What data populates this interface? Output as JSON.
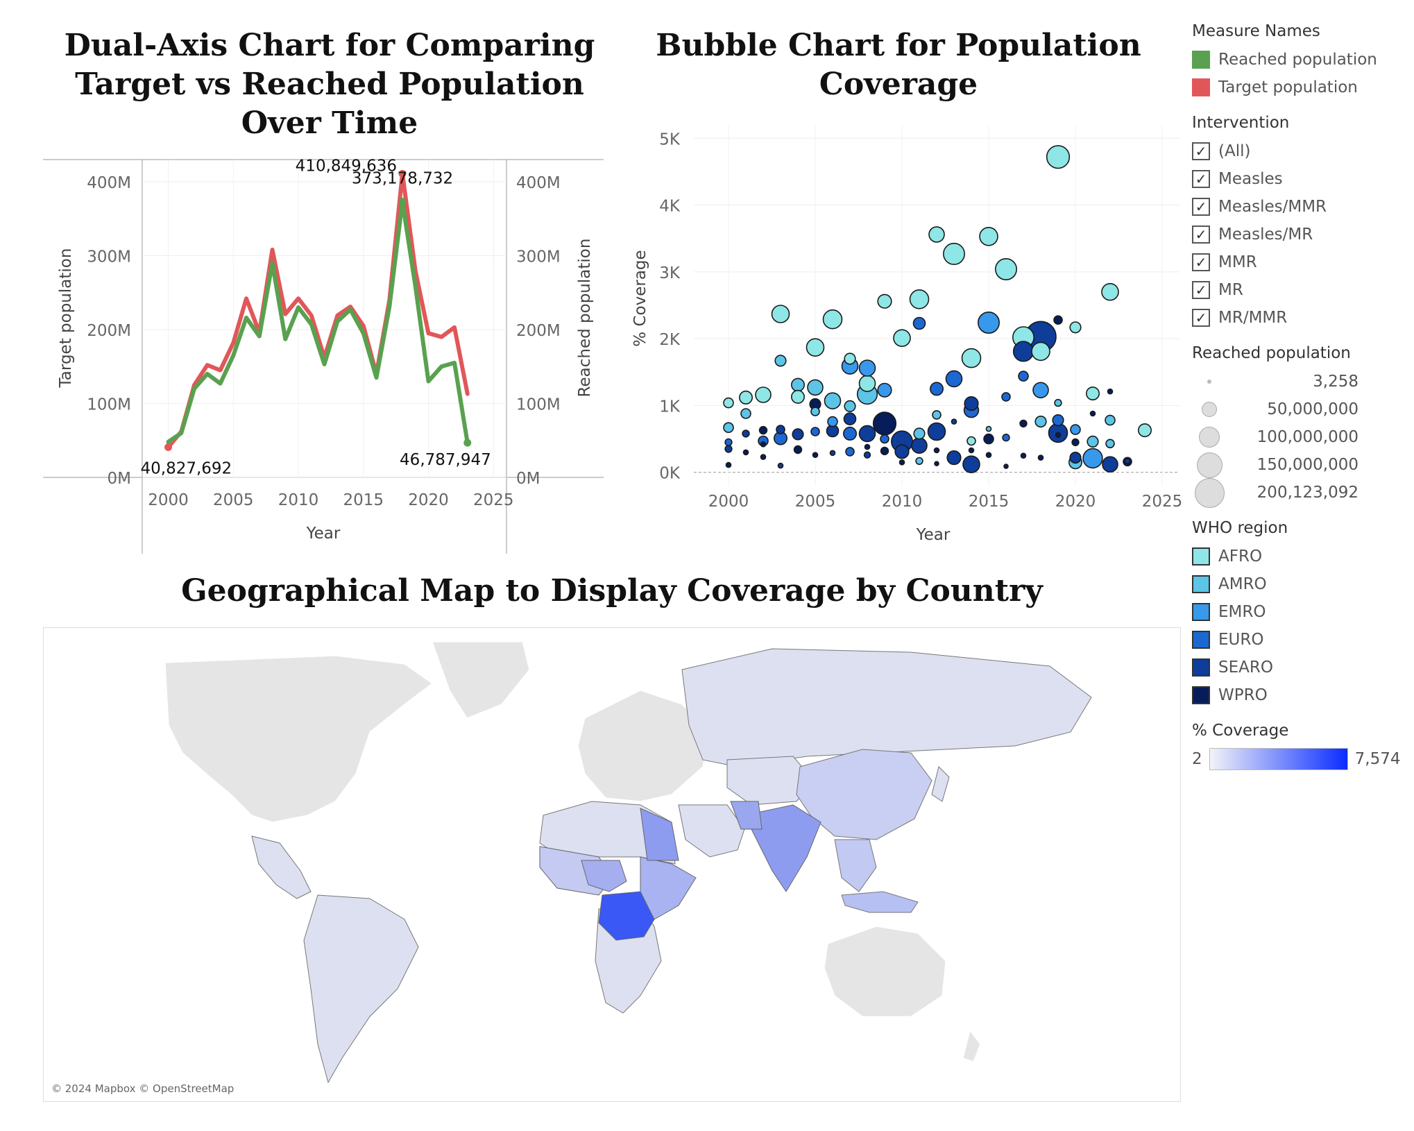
{
  "titles": {
    "dual": "Dual-Axis Chart for Comparing Target vs Reached Population Over Time",
    "bubble": "Bubble Chart for Population Coverage",
    "map": "Geographical Map to Display Coverage by Country"
  },
  "chart_data": [
    {
      "type": "line",
      "title": "Dual-Axis Chart for Comparing Target vs Reached Population Over Time",
      "xlabel": "Year",
      "ylabel_left": "Target population",
      "ylabel_right": "Reached population",
      "xlim": [
        1998,
        2026
      ],
      "ylim": [
        0,
        430000000
      ],
      "x_ticks": [
        2000,
        2005,
        2010,
        2015,
        2020,
        2025
      ],
      "y_ticks": [
        {
          "v": 0,
          "label": "0M"
        },
        {
          "v": 100000000,
          "label": "100M"
        },
        {
          "v": 200000000,
          "label": "200M"
        },
        {
          "v": 300000000,
          "label": "300M"
        },
        {
          "v": 400000000,
          "label": "400M"
        }
      ],
      "x": [
        2000,
        2001,
        2002,
        2003,
        2004,
        2005,
        2006,
        2007,
        2008,
        2009,
        2010,
        2011,
        2012,
        2013,
        2014,
        2015,
        2016,
        2017,
        2018,
        2019,
        2020,
        2021,
        2022,
        2023
      ],
      "series": [
        {
          "name": "Target population",
          "color": "#e15759",
          "values": [
            40827692,
            62000000,
            125000000,
            152000000,
            145000000,
            182000000,
            242000000,
            196000000,
            308000000,
            221000000,
            242000000,
            219000000,
            162000000,
            219000000,
            231000000,
            205000000,
            140000000,
            240000000,
            410849636,
            279000000,
            195000000,
            190000000,
            203000000,
            113000000
          ]
        },
        {
          "name": "Reached population",
          "color": "#59a14f",
          "values": [
            48000000,
            60000000,
            120000000,
            140000000,
            127000000,
            165000000,
            216000000,
            191000000,
            290000000,
            187000000,
            230000000,
            207000000,
            153000000,
            211000000,
            227000000,
            195000000,
            135000000,
            231000000,
            373178732,
            258000000,
            130000000,
            150000000,
            155000000,
            46787947
          ]
        }
      ],
      "annotations": [
        {
          "x": 2000,
          "text": "40,827,692",
          "series": "Target population"
        },
        {
          "x": 2018,
          "text": "410,849,636",
          "series": "Target population"
        },
        {
          "x": 2018,
          "text": "373,178,732",
          "series": "Reached population"
        },
        {
          "x": 2023,
          "text": "46,787,947",
          "series": "Reached population"
        }
      ]
    },
    {
      "type": "scatter",
      "title": "Bubble Chart for Population Coverage",
      "xlabel": "Year",
      "ylabel": "% Coverage",
      "xlim": [
        1998,
        2026
      ],
      "ylim": [
        -200,
        5200
      ],
      "x_ticks": [
        2000,
        2005,
        2010,
        2015,
        2020,
        2025
      ],
      "y_ticks": [
        {
          "v": 0,
          "label": "0K"
        },
        {
          "v": 1000,
          "label": "1K"
        },
        {
          "v": 2000,
          "label": "2K"
        },
        {
          "v": 3000,
          "label": "3K"
        },
        {
          "v": 4000,
          "label": "4K"
        },
        {
          "v": 5000,
          "label": "5K"
        }
      ],
      "size_field": "Reached population",
      "color_field": "WHO region",
      "points": [
        {
          "x": 2019,
          "y": 4720,
          "size": 110000000,
          "region": "AFRO"
        },
        {
          "x": 2012,
          "y": 3560,
          "size": 50000000,
          "region": "AFRO"
        },
        {
          "x": 2015,
          "y": 3530,
          "size": 70000000,
          "region": "AFRO"
        },
        {
          "x": 2013,
          "y": 3270,
          "size": 95000000,
          "region": "AFRO"
        },
        {
          "x": 2016,
          "y": 3040,
          "size": 95000000,
          "region": "AFRO"
        },
        {
          "x": 2022,
          "y": 2700,
          "size": 60000000,
          "region": "AFRO"
        },
        {
          "x": 2011,
          "y": 2590,
          "size": 75000000,
          "region": "AFRO"
        },
        {
          "x": 2009,
          "y": 2560,
          "size": 40000000,
          "region": "AFRO"
        },
        {
          "x": 2003,
          "y": 2370,
          "size": 65000000,
          "region": "AFRO"
        },
        {
          "x": 2006,
          "y": 2290,
          "size": 75000000,
          "region": "AFRO"
        },
        {
          "x": 2020,
          "y": 2170,
          "size": 25000000,
          "region": "AFRO"
        },
        {
          "x": 2010,
          "y": 2010,
          "size": 60000000,
          "region": "AFRO"
        },
        {
          "x": 2017,
          "y": 2020,
          "size": 95000000,
          "region": "AFRO"
        },
        {
          "x": 2005,
          "y": 1870,
          "size": 65000000,
          "region": "AFRO"
        },
        {
          "x": 2018,
          "y": 1810,
          "size": 70000000,
          "region": "AFRO"
        },
        {
          "x": 2014,
          "y": 1710,
          "size": 75000000,
          "region": "AFRO"
        },
        {
          "x": 2007,
          "y": 1700,
          "size": 25000000,
          "region": "AFRO"
        },
        {
          "x": 2003,
          "y": 1670,
          "size": 25000000,
          "region": "AMRO"
        },
        {
          "x": 2008,
          "y": 1330,
          "size": 55000000,
          "region": "AFRO"
        },
        {
          "x": 2004,
          "y": 1310,
          "size": 35000000,
          "region": "AMRO"
        },
        {
          "x": 2005,
          "y": 1270,
          "size": 50000000,
          "region": "AMRO"
        },
        {
          "x": 2002,
          "y": 1160,
          "size": 50000000,
          "region": "AFRO"
        },
        {
          "x": 2001,
          "y": 1120,
          "size": 35000000,
          "region": "AFRO"
        },
        {
          "x": 2004,
          "y": 1130,
          "size": 35000000,
          "region": "AFRO"
        },
        {
          "x": 2008,
          "y": 1170,
          "size": 85000000,
          "region": "AMRO"
        },
        {
          "x": 2021,
          "y": 1180,
          "size": 35000000,
          "region": "AFRO"
        },
        {
          "x": 2000,
          "y": 1040,
          "size": 20000000,
          "region": "AFRO"
        },
        {
          "x": 2006,
          "y": 1070,
          "size": 55000000,
          "region": "AMRO"
        },
        {
          "x": 2007,
          "y": 990,
          "size": 25000000,
          "region": "AMRO"
        },
        {
          "x": 2001,
          "y": 880,
          "size": 20000000,
          "region": "AMRO"
        },
        {
          "x": 2019,
          "y": 1040,
          "size": 10000000,
          "region": "AMRO"
        },
        {
          "x": 2008,
          "y": 1560,
          "size": 55000000,
          "region": "EMRO"
        },
        {
          "x": 2007,
          "y": 1590,
          "size": 55000000,
          "region": "EMRO"
        },
        {
          "x": 2009,
          "y": 1230,
          "size": 40000000,
          "region": "EMRO"
        },
        {
          "x": 2015,
          "y": 2240,
          "size": 95000000,
          "region": "EMRO"
        },
        {
          "x": 2018,
          "y": 1230,
          "size": 50000000,
          "region": "EMRO"
        },
        {
          "x": 2022,
          "y": 780,
          "size": 20000000,
          "region": "AMRO"
        },
        {
          "x": 2024,
          "y": 630,
          "size": 35000000,
          "region": "AFRO"
        },
        {
          "x": 2021,
          "y": 210,
          "size": 80000000,
          "region": "EMRO"
        },
        {
          "x": 2020,
          "y": 150,
          "size": 35000000,
          "region": "AMRO"
        },
        {
          "x": 2011,
          "y": 580,
          "size": 25000000,
          "region": "AMRO"
        },
        {
          "x": 2017,
          "y": 1440,
          "size": 20000000,
          "region": "EURO"
        },
        {
          "x": 2012,
          "y": 1250,
          "size": 35000000,
          "region": "EURO"
        },
        {
          "x": 2013,
          "y": 1400,
          "size": 55000000,
          "region": "EURO"
        },
        {
          "x": 2011,
          "y": 2230,
          "size": 30000000,
          "region": "EURO"
        },
        {
          "x": 2016,
          "y": 1130,
          "size": 15000000,
          "region": "EURO"
        },
        {
          "x": 2014,
          "y": 930,
          "size": 45000000,
          "region": "EURO"
        },
        {
          "x": 2018,
          "y": 2030,
          "size": 200123092,
          "region": "SEARO"
        },
        {
          "x": 2017,
          "y": 1810,
          "size": 85000000,
          "region": "SEARO"
        },
        {
          "x": 2019,
          "y": 2280,
          "size": 15000000,
          "region": "WPRO"
        },
        {
          "x": 2009,
          "y": 730,
          "size": 110000000,
          "region": "WPRO"
        },
        {
          "x": 2010,
          "y": 460,
          "size": 95000000,
          "region": "SEARO"
        },
        {
          "x": 2011,
          "y": 400,
          "size": 50000000,
          "region": "SEARO"
        },
        {
          "x": 2010,
          "y": 310,
          "size": 40000000,
          "region": "SEARO"
        },
        {
          "x": 2012,
          "y": 610,
          "size": 65000000,
          "region": "SEARO"
        },
        {
          "x": 2014,
          "y": 1030,
          "size": 40000000,
          "region": "SEARO"
        },
        {
          "x": 2019,
          "y": 590,
          "size": 75000000,
          "region": "SEARO"
        },
        {
          "x": 2014,
          "y": 120,
          "size": 60000000,
          "region": "SEARO"
        },
        {
          "x": 2013,
          "y": 220,
          "size": 40000000,
          "region": "SEARO"
        },
        {
          "x": 2022,
          "y": 120,
          "size": 50000000,
          "region": "SEARO"
        },
        {
          "x": 2020,
          "y": 220,
          "size": 25000000,
          "region": "SEARO"
        },
        {
          "x": 2008,
          "y": 580,
          "size": 55000000,
          "region": "SEARO"
        },
        {
          "x": 2007,
          "y": 580,
          "size": 35000000,
          "region": "EURO"
        },
        {
          "x": 2006,
          "y": 620,
          "size": 30000000,
          "region": "SEARO"
        },
        {
          "x": 2004,
          "y": 570,
          "size": 25000000,
          "region": "SEARO"
        },
        {
          "x": 2003,
          "y": 510,
          "size": 35000000,
          "region": "EURO"
        },
        {
          "x": 2002,
          "y": 470,
          "size": 20000000,
          "region": "EURO"
        },
        {
          "x": 2001,
          "y": 580,
          "size": 10000000,
          "region": "SEARO"
        },
        {
          "x": 2000,
          "y": 350,
          "size": 10000000,
          "region": "SEARO"
        },
        {
          "x": 2000,
          "y": 450,
          "size": 10000000,
          "region": "EURO"
        },
        {
          "x": 2000,
          "y": 670,
          "size": 20000000,
          "region": "AMRO"
        },
        {
          "x": 2005,
          "y": 610,
          "size": 15000000,
          "region": "EURO"
        },
        {
          "x": 2006,
          "y": 760,
          "size": 20000000,
          "region": "EMRO"
        },
        {
          "x": 2007,
          "y": 800,
          "size": 30000000,
          "region": "SEARO"
        },
        {
          "x": 2009,
          "y": 500,
          "size": 15000000,
          "region": "EURO"
        },
        {
          "x": 2015,
          "y": 500,
          "size": 20000000,
          "region": "WPRO"
        },
        {
          "x": 2016,
          "y": 520,
          "size": 10000000,
          "region": "EURO"
        },
        {
          "x": 2017,
          "y": 730,
          "size": 10000000,
          "region": "WPRO"
        },
        {
          "x": 2018,
          "y": 760,
          "size": 25000000,
          "region": "AMRO"
        },
        {
          "x": 2019,
          "y": 780,
          "size": 25000000,
          "region": "EURO"
        },
        {
          "x": 2021,
          "y": 460,
          "size": 25000000,
          "region": "AMRO"
        },
        {
          "x": 2022,
          "y": 430,
          "size": 15000000,
          "region": "AMRO"
        },
        {
          "x": 2023,
          "y": 160,
          "size": 15000000,
          "region": "WPRO"
        },
        {
          "x": 2003,
          "y": 640,
          "size": 15000000,
          "region": "SEARO"
        },
        {
          "x": 2002,
          "y": 630,
          "size": 12000000,
          "region": "WPRO"
        },
        {
          "x": 2005,
          "y": 910,
          "size": 15000000,
          "region": "AMRO"
        },
        {
          "x": 2005,
          "y": 1020,
          "size": 25000000,
          "region": "WPRO"
        },
        {
          "x": 2012,
          "y": 860,
          "size": 15000000,
          "region": "AMRO"
        },
        {
          "x": 2014,
          "y": 470,
          "size": 15000000,
          "region": "AFRO"
        },
        {
          "x": 2020,
          "y": 640,
          "size": 20000000,
          "region": "EMRO"
        },
        {
          "x": 2009,
          "y": 320,
          "size": 12000000,
          "region": "WPRO"
        },
        {
          "x": 2011,
          "y": 170,
          "size": 10000000,
          "region": "AMRO"
        },
        {
          "x": 2008,
          "y": 260,
          "size": 8000000,
          "region": "SEARO"
        },
        {
          "x": 2001,
          "y": 300,
          "size": 5000000,
          "region": "WPRO"
        },
        {
          "x": 2002,
          "y": 230,
          "size": 5000000,
          "region": "WPRO"
        },
        {
          "x": 2003,
          "y": 100,
          "size": 5000000,
          "region": "SEARO"
        },
        {
          "x": 2004,
          "y": 340,
          "size": 12000000,
          "region": "WPRO"
        },
        {
          "x": 2005,
          "y": 260,
          "size": 5000000,
          "region": "WPRO"
        },
        {
          "x": 2006,
          "y": 290,
          "size": 5000000,
          "region": "SEARO"
        },
        {
          "x": 2007,
          "y": 310,
          "size": 15000000,
          "region": "EURO"
        },
        {
          "x": 2008,
          "y": 380,
          "size": 5000000,
          "region": "WPRO"
        },
        {
          "x": 2012,
          "y": 130,
          "size": 3258,
          "region": "WPRO"
        },
        {
          "x": 2013,
          "y": 760,
          "size": 5000000,
          "region": "SEARO"
        },
        {
          "x": 2014,
          "y": 330,
          "size": 5000000,
          "region": "WPRO"
        },
        {
          "x": 2015,
          "y": 650,
          "size": 5000000,
          "region": "AMRO"
        },
        {
          "x": 2016,
          "y": 90,
          "size": 3258,
          "region": "WPRO"
        },
        {
          "x": 2017,
          "y": 250,
          "size": 5000000,
          "region": "WPRO"
        },
        {
          "x": 2018,
          "y": 220,
          "size": 5000000,
          "region": "WPRO"
        },
        {
          "x": 2019,
          "y": 560,
          "size": 5000000,
          "region": "WPRO"
        },
        {
          "x": 2020,
          "y": 450,
          "size": 10000000,
          "region": "WPRO"
        },
        {
          "x": 2022,
          "y": 1210,
          "size": 5000000,
          "region": "WPRO"
        },
        {
          "x": 2023,
          "y": 170,
          "size": 5000000,
          "region": "SEARO"
        },
        {
          "x": 2000,
          "y": 110,
          "size": 5000000,
          "region": "WPRO"
        },
        {
          "x": 2002,
          "y": 420,
          "size": 5000000,
          "region": "WPRO"
        },
        {
          "x": 2010,
          "y": 150,
          "size": 5000000,
          "region": "WPRO"
        },
        {
          "x": 2012,
          "y": 330,
          "size": 5000000,
          "region": "WPRO"
        },
        {
          "x": 2015,
          "y": 260,
          "size": 5000000,
          "region": "WPRO"
        },
        {
          "x": 2021,
          "y": 880,
          "size": 5000000,
          "region": "WPRO"
        }
      ]
    }
  ],
  "legend": {
    "measure_names": {
      "title": "Measure Names",
      "items": [
        {
          "label": "Reached population",
          "color": "#59a14f"
        },
        {
          "label": "Target population",
          "color": "#e15759"
        }
      ]
    },
    "intervention": {
      "title": "Intervention",
      "items": [
        "(All)",
        "Measles",
        "Measles/MMR",
        "Measles/MR",
        "MMR",
        "MR",
        "MR/MMR"
      ]
    },
    "size": {
      "title": "Reached population",
      "items": [
        {
          "label": "3,258",
          "value": 3258
        },
        {
          "label": "50,000,000",
          "value": 50000000
        },
        {
          "label": "100,000,000",
          "value": 100000000
        },
        {
          "label": "150,000,000",
          "value": 150000000
        },
        {
          "label": "200,123,092",
          "value": 200123092
        }
      ]
    },
    "who_region": {
      "title": "WHO region",
      "items": [
        {
          "label": "AFRO",
          "color": "#8ee6e6"
        },
        {
          "label": "AMRO",
          "color": "#5cc4e6"
        },
        {
          "label": "EMRO",
          "color": "#3898ec"
        },
        {
          "label": "EURO",
          "color": "#1c68d2"
        },
        {
          "label": "SEARO",
          "color": "#0e3d9a"
        },
        {
          "label": "WPRO",
          "color": "#071d5a"
        }
      ]
    },
    "coverage": {
      "title": "% Coverage",
      "min_label": "2",
      "max_label": "7,574"
    }
  },
  "map": {
    "attribution": "© 2024 Mapbox © OpenStreetMap",
    "colors": {
      "no_data": "#e5e5e5",
      "low": "#dde0f0",
      "mid": "#b7c0f2",
      "high": "#8e9cf0",
      "max": "#3a58f5",
      "ocean": "#ffffff"
    }
  }
}
